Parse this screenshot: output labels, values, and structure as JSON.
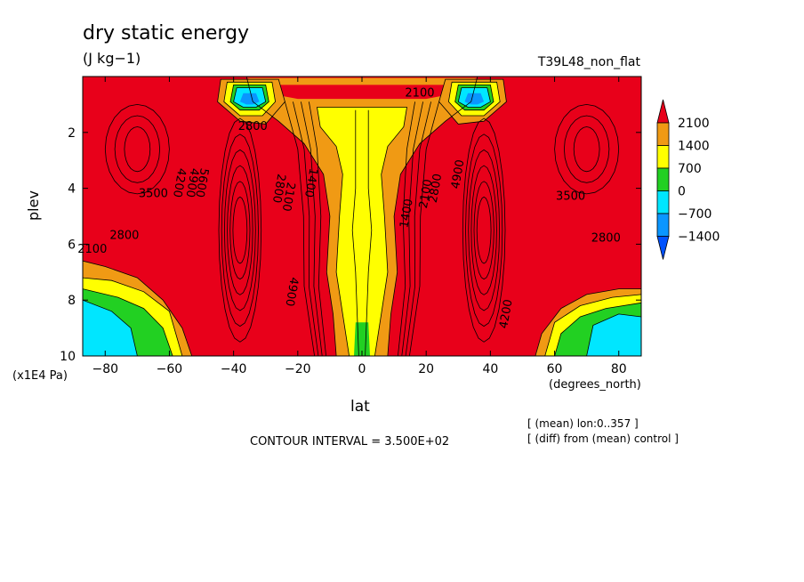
{
  "chart_data": {
    "type": "heatmap",
    "title": "dry static energy",
    "units": "(J kg−1)",
    "experiment": "T39L48_non_flat",
    "xlabel": "lat",
    "xunits": "(degrees_north)",
    "ylabel": "plev",
    "yunits": "(x1E4 Pa)",
    "xlim": [
      -87,
      87
    ],
    "ylim": [
      0,
      10
    ],
    "y_inverted": true,
    "xticks": [
      "−80",
      "−60",
      "−40",
      "−20",
      "0",
      "20",
      "40",
      "60",
      "80"
    ],
    "xtick_values": [
      -80,
      -60,
      -40,
      -20,
      0,
      20,
      40,
      60,
      80
    ],
    "yticks": [
      "2",
      "4",
      "6",
      "8",
      "10"
    ],
    "ytick_values": [
      2,
      4,
      6,
      8,
      10
    ],
    "colorbar": {
      "labels": [
        "2100",
        "1400",
        "700",
        "0",
        "−700",
        "−1400"
      ],
      "levels": [
        2100,
        1400,
        700,
        0,
        -700,
        -1400
      ],
      "colors": [
        "#e8001a",
        "#f09a14",
        "#ffff00",
        "#22d022",
        "#00e6ff",
        "#0a96ff",
        "#0052ff"
      ]
    },
    "contour_labels": [
      {
        "text": "2100",
        "x": -84,
        "y": 6.2
      },
      {
        "text": "2800",
        "x": -74,
        "y": 5.7
      },
      {
        "text": "3500",
        "x": -65,
        "y": 4.2
      },
      {
        "text": "4200",
        "x": -57,
        "y": 3.8
      },
      {
        "text": "4900",
        "x": -53,
        "y": 3.8
      },
      {
        "text": "5600",
        "x": -50,
        "y": 3.8
      },
      {
        "text": "2800",
        "x": -34,
        "y": 1.8
      },
      {
        "text": "2100",
        "x": -23,
        "y": 4.3
      },
      {
        "text": "2800",
        "x": -26,
        "y": 4.0
      },
      {
        "text": "1400",
        "x": -16,
        "y": 3.8
      },
      {
        "text": "4900",
        "x": -22,
        "y": 7.7
      },
      {
        "text": "1400",
        "x": 14,
        "y": 4.9
      },
      {
        "text": "2100",
        "x": 20,
        "y": 4.2
      },
      {
        "text": "2800",
        "x": 23,
        "y": 4.0
      },
      {
        "text": "4900",
        "x": 30,
        "y": 3.5
      },
      {
        "text": "3500",
        "x": 65,
        "y": 4.3
      },
      {
        "text": "2800",
        "x": 76,
        "y": 5.8
      },
      {
        "text": "4200",
        "x": 45,
        "y": 8.5
      },
      {
        "text": "2100",
        "x": 18,
        "y": 0.6
      }
    ],
    "regions": [
      {
        "value": "2100+",
        "desc": "red background over most of domain"
      },
      {
        "value": "1400-2100",
        "desc": "orange band around central yellow core"
      },
      {
        "value": "700-1400",
        "desc": "yellow equatorial column 0-10 plev"
      },
      {
        "value": "0-700",
        "desc": "green near poles bottom and at equator surface"
      },
      {
        "value": "-700-0",
        "desc": "cyan pools near both poles bottom and upper cells at ±35"
      },
      {
        "value": "<-700",
        "desc": "blue minima in upper cells near 1 x1E4 Pa at ±35"
      }
    ]
  },
  "labels": {
    "title": "dry static energy",
    "units": "(J kg−1)",
    "experiment": "T39L48_non_flat",
    "ylabel": "plev",
    "yunits": "(x1E4 Pa)",
    "xlabel": "lat",
    "xunits": "(degrees_north)",
    "interval": "CONTOUR INTERVAL = 3.500E+02",
    "note1": "[ (mean) lon:0..357 ]",
    "note2": "[ (diff) from (mean) control ]"
  }
}
